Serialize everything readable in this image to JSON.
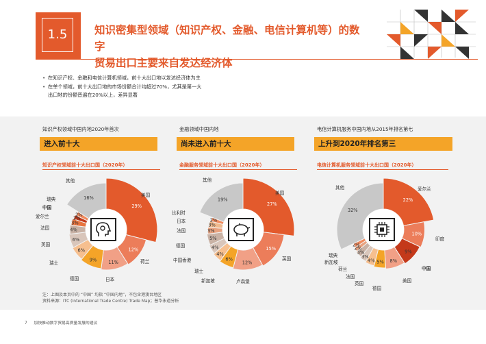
{
  "header": {
    "section_number": "1.5",
    "title_line1": "知识密集型领域（知识产权、金融、电信计算机等）的数字",
    "title_line2": "贸易出口主要来自发达经济体"
  },
  "bullets": [
    "在知识产权、金融和电信计算机领域，前十大出口地以发达经济体为主",
    "在单个领域，前十大出口地的市场份额合计均超过70%，尤其是第一大",
    "出口地的份额普遍在20%以上，差异显著"
  ],
  "colors": {
    "accent": "#e35a2c",
    "badge": "#f4a428",
    "band": "#f2f2f2",
    "other": "#c8c8c8"
  },
  "panels": [
    {
      "caption": "知识产权领域中国内地2020年首次",
      "badge": "进入前十大",
      "subtitle": "知识产权领域前十大出口国（2020年）",
      "icon": "head-gear-icon"
    },
    {
      "caption": "金融领域中国内地",
      "badge": "尚未进入前十大",
      "subtitle": "金融服务领域前十大出口国（2020年）",
      "icon": "piggy-bank-icon"
    },
    {
      "caption": "电信计算机服务中国内地从2015年排名第七",
      "badge": "上升到2020年排名第三",
      "subtitle": "电信计算机服务领域前十大出口国（2020年）",
      "icon": "cpu-chip-icon"
    }
  ],
  "chart_data": [
    {
      "type": "pie",
      "title": "知识产权领域前十大出口国（2020年）",
      "categories": [
        "美国",
        "荷兰",
        "日本",
        "德国",
        "瑞士",
        "英国",
        "法国",
        "爱尔兰",
        "中国",
        "瑞典",
        "其他"
      ],
      "values": [
        29,
        12,
        11,
        9,
        6,
        6,
        4,
        3,
        2,
        2,
        16
      ],
      "value_labels": [
        "29%",
        "12%",
        "11%",
        "9%",
        "6%",
        "6%",
        "4%",
        "3%",
        "2%",
        "2%",
        "16%"
      ]
    },
    {
      "type": "pie",
      "title": "金融服务领域前十大出口国（2020年）",
      "categories": [
        "美国",
        "英国",
        "卢森堡",
        "新加坡",
        "瑞士",
        "中国香港",
        "德国",
        "法国",
        "日本",
        "比利时",
        "其他"
      ],
      "values": [
        27,
        15,
        12,
        6,
        4,
        4,
        5,
        3,
        3,
        2,
        19
      ],
      "value_labels": [
        "27%",
        "15%",
        "12%",
        "6%",
        "4%",
        "4%",
        "5%",
        "3%",
        "3%",
        "2%",
        "19%"
      ]
    },
    {
      "type": "pie",
      "title": "电信计算机服务领域前十大出口国（2020年）",
      "categories": [
        "爱尔兰",
        "印度",
        "中国",
        "美国",
        "德国",
        "英国",
        "法国",
        "荷兰",
        "新加坡",
        "瑞典",
        "其他"
      ],
      "values": [
        22,
        10,
        9,
        8,
        5,
        4,
        3,
        3,
        2,
        2,
        32
      ],
      "value_labels": [
        "22%",
        "10%",
        "9%",
        "8%",
        "5%",
        "4%",
        "3%",
        "3%",
        "2%",
        "2%",
        "32%"
      ]
    }
  ],
  "note_line1": "注：上图及本页中的 “中国” 均指 “中国内地”，不包含港澳台地区",
  "note_line2": "资料来源：ITC (International Trade Centre) Trade Map；普华永道分析",
  "footer": {
    "page_number": "7",
    "text": "加快推动数字贸易高质量发展的建议"
  }
}
